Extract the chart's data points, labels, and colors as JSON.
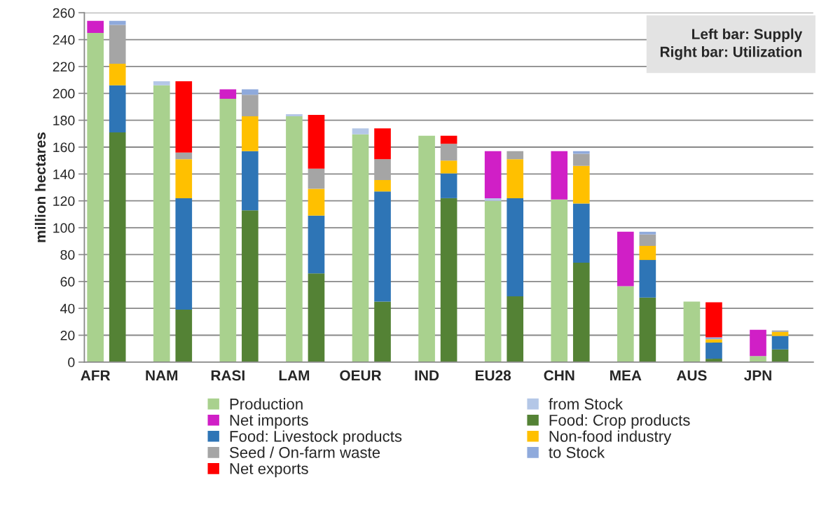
{
  "chart_data": {
    "type": "bar",
    "stacked": true,
    "ylabel": "million hectares",
    "categories": [
      "AFR",
      null,
      null,
      "NAM",
      null,
      null,
      "RASI",
      null,
      null,
      "LAM",
      null,
      null,
      "OEUR",
      null,
      null,
      "IND",
      null,
      null,
      "EU28",
      null,
      null,
      "CHN",
      null,
      null,
      "MEA",
      null,
      null,
      "AUS",
      null,
      null,
      "JPN",
      null,
      null
    ],
    "series": [
      {
        "name": "Production",
        "color": "#a9d18e",
        "values": [
          245,
          null,
          null,
          206,
          null,
          null,
          196,
          null,
          null,
          183,
          null,
          null,
          169.5,
          null,
          null,
          168.5,
          null,
          null,
          120,
          null,
          null,
          121,
          null,
          null,
          56.5,
          null,
          null,
          45,
          null,
          null,
          4.5,
          null,
          null
        ]
      },
      {
        "name": "from Stock",
        "color": "#b4c7e7",
        "values": [
          null,
          null,
          null,
          3,
          null,
          null,
          null,
          null,
          null,
          1.5,
          null,
          null,
          4.5,
          null,
          null,
          null,
          null,
          null,
          2,
          null,
          null,
          null,
          null,
          null,
          null,
          null,
          null,
          null,
          null,
          null,
          null,
          null,
          null
        ]
      },
      {
        "name": "Net imports",
        "color": "#d01fc6",
        "values": [
          9,
          null,
          null,
          null,
          null,
          null,
          7,
          null,
          null,
          null,
          null,
          null,
          null,
          null,
          null,
          null,
          null,
          null,
          35,
          null,
          null,
          36,
          null,
          null,
          40.5,
          null,
          null,
          null,
          null,
          null,
          19.5,
          null,
          null
        ]
      },
      {
        "name": "Food: Crop products",
        "color": "#548235",
        "values": [
          null,
          171,
          null,
          null,
          39,
          null,
          null,
          113,
          null,
          null,
          66,
          null,
          null,
          45,
          null,
          null,
          122,
          null,
          null,
          49,
          null,
          null,
          74,
          null,
          null,
          48,
          null,
          null,
          2.5,
          null,
          null,
          9.5,
          null
        ]
      },
      {
        "name": "Food: Livestock products",
        "color": "#2e75b6",
        "values": [
          null,
          35,
          null,
          null,
          83,
          null,
          null,
          44,
          null,
          null,
          43,
          null,
          null,
          82,
          null,
          null,
          18.5,
          null,
          null,
          73,
          null,
          null,
          44,
          null,
          null,
          28,
          null,
          null,
          12,
          null,
          null,
          10,
          null
        ]
      },
      {
        "name": "Non-food industry",
        "color": "#ffc000",
        "values": [
          null,
          16,
          null,
          null,
          29,
          null,
          null,
          26,
          null,
          null,
          20,
          null,
          null,
          8.5,
          null,
          null,
          9.5,
          null,
          null,
          29,
          null,
          null,
          28,
          null,
          null,
          10.5,
          null,
          null,
          2.5,
          null,
          null,
          3,
          null
        ]
      },
      {
        "name": "Seed / On-farm waste",
        "color": "#a5a5a5",
        "values": [
          null,
          29,
          null,
          null,
          5,
          null,
          null,
          16,
          null,
          null,
          15,
          null,
          null,
          15.5,
          null,
          null,
          12.5,
          null,
          null,
          6,
          null,
          null,
          9,
          null,
          null,
          8.5,
          null,
          null,
          null,
          null,
          null,
          1,
          null
        ]
      },
      {
        "name": "to Stock",
        "color": "#8faadc",
        "values": [
          null,
          3,
          null,
          null,
          null,
          null,
          null,
          4,
          null,
          null,
          null,
          null,
          null,
          null,
          null,
          null,
          null,
          null,
          null,
          null,
          null,
          null,
          2,
          null,
          null,
          2,
          null,
          null,
          1.5,
          null,
          null,
          null,
          null
        ]
      },
      {
        "name": "Net exports",
        "color": "#ff0000",
        "values": [
          null,
          null,
          null,
          null,
          53,
          null,
          null,
          null,
          null,
          null,
          40,
          null,
          null,
          23,
          null,
          null,
          6,
          null,
          null,
          null,
          null,
          null,
          null,
          null,
          null,
          null,
          null,
          null,
          26,
          null,
          null,
          null,
          null
        ]
      }
    ],
    "ylim": [
      0,
      260
    ],
    "yticks": [
      0,
      20,
      40,
      60,
      80,
      100,
      120,
      140,
      160,
      180,
      200,
      220,
      240,
      260
    ],
    "grid": "y",
    "legend": "bottom",
    "annotations": [
      "Left bar: Supply\nRight bar: Utilization"
    ]
  }
}
